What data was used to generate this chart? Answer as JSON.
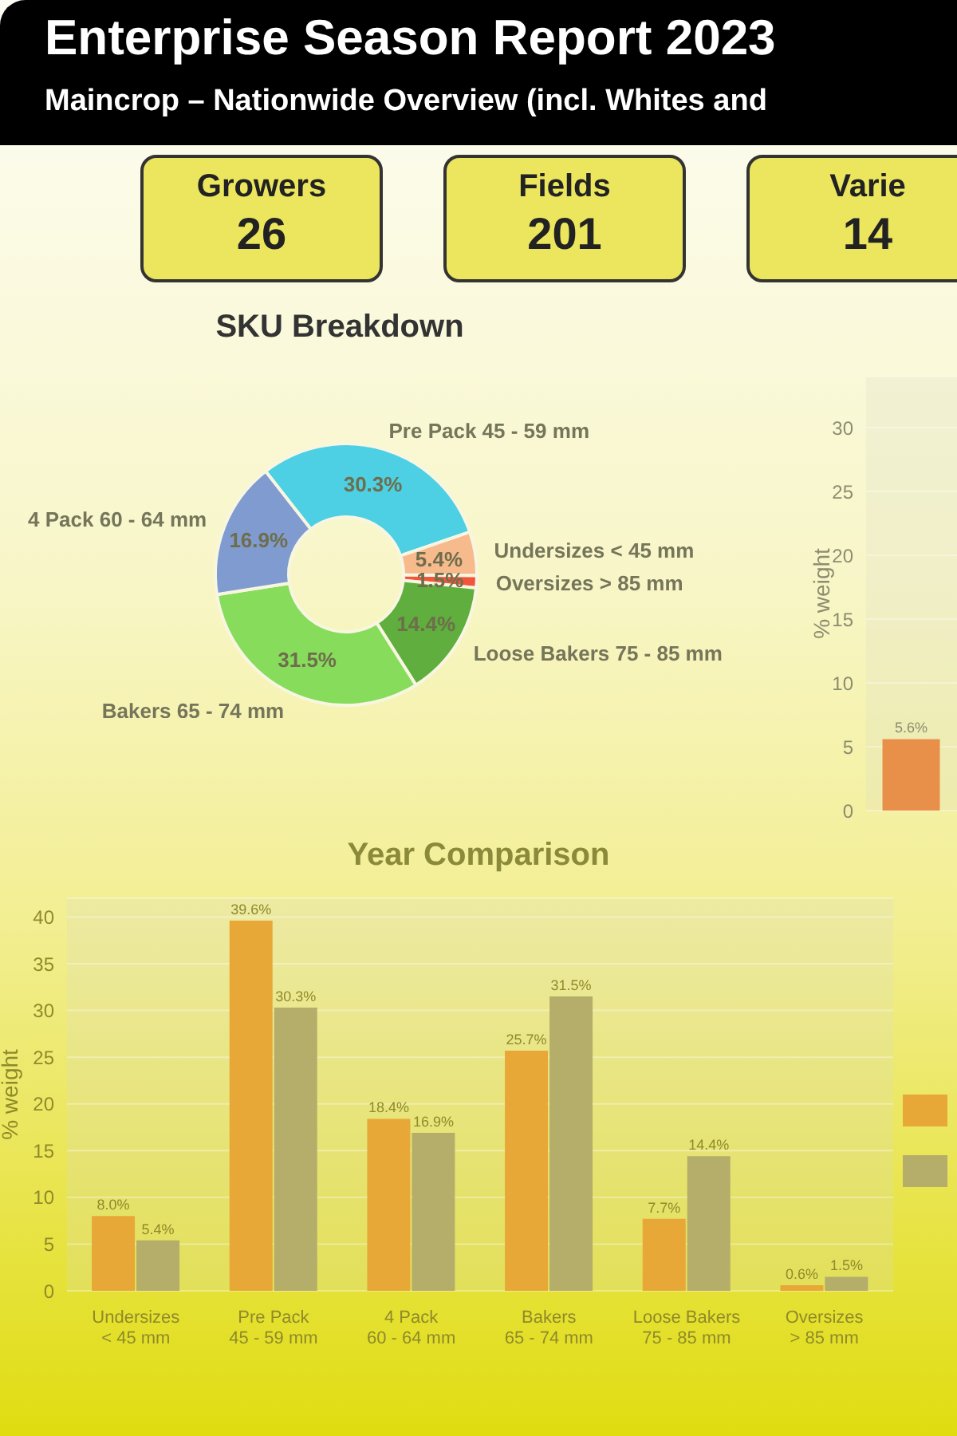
{
  "chart_data": [
    {
      "type": "other",
      "title": "Enterprise Season Report 2023",
      "subtitle": "Maincrop – Nationwide Overview (incl. Whites and",
      "categories": [
        "Growers",
        "Fields",
        "Varie"
      ],
      "annotations": [
        "26",
        "201",
        "14"
      ],
      "color": "#ebe65e"
    },
    {
      "type": "donut",
      "title": "SKU Breakdown",
      "categories": [
        "Pre Pack 45 - 59 mm",
        "Undersizes < 45 mm",
        "Oversizes > 85 mm",
        "Loose Bakers 75 - 85 mm",
        "Bakers 65 - 74 mm",
        "4 Pack 60 - 64 mm"
      ],
      "values": [
        30.3,
        5.4,
        1.5,
        14.4,
        31.5,
        16.9
      ],
      "colors": [
        "#4dd0e4",
        "#f7ba8c",
        "#f2553a",
        "#5fae3e",
        "#87dc5c",
        "#7f9bd0"
      ],
      "value_labels": [
        "30.3%",
        "5.4%",
        "1.5%",
        "14.4%",
        "31.5%",
        "16.9%"
      ]
    },
    {
      "type": "bar",
      "categories": [
        null
      ],
      "ylabel": "% weight",
      "ylim": [
        0,
        34
      ],
      "yticks": [
        0,
        5,
        10,
        15,
        20,
        25,
        30
      ],
      "grid": "y",
      "series": [
        {
          "color": "#e8904a",
          "values": [
            5.6
          ],
          "value_labels": [
            "5.6%"
          ]
        }
      ]
    },
    {
      "type": "bar",
      "title": "Year Comparison",
      "ylabel": "% weight",
      "categories": [
        "Undersizes\n< 45 mm",
        "Pre Pack\n45 - 59 mm",
        "4 Pack\n60 - 64 mm",
        "Bakers\n65 - 74 mm",
        "Loose Bakers\n75 - 85 mm",
        "Oversizes\n> 85 mm"
      ],
      "ylim": [
        0,
        42
      ],
      "yticks": [
        0,
        5,
        10,
        15,
        20,
        25,
        30,
        35,
        40
      ],
      "grid": "y",
      "series": [
        {
          "color": "#e8a838",
          "values": [
            8.0,
            39.6,
            18.4,
            25.7,
            7.7,
            0.6
          ],
          "value_labels": [
            "8.0%",
            "39.6%",
            "18.4%",
            "25.7%",
            "7.7%",
            "0.6%"
          ]
        },
        {
          "color": "#b4ae6a",
          "values": [
            5.4,
            30.3,
            16.9,
            31.5,
            14.4,
            1.5
          ],
          "value_labels": [
            "5.4%",
            "30.3%",
            "16.9%",
            "31.5%",
            "14.4%",
            "1.5%"
          ]
        }
      ]
    }
  ]
}
